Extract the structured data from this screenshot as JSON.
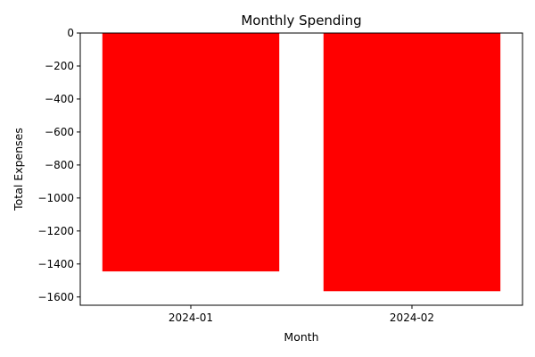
{
  "chart_data": {
    "type": "bar",
    "title": "Monthly Spending",
    "xlabel": "Month",
    "ylabel": "Total Expenses",
    "categories": [
      "2024-01",
      "2024-02"
    ],
    "values": [
      -1445,
      -1565
    ],
    "ylim": [
      -1650,
      0
    ],
    "yticks": [
      0,
      -200,
      -400,
      -600,
      -800,
      -1000,
      -1200,
      -1400,
      -1600
    ],
    "ytick_labels": [
      "0",
      "−200",
      "−400",
      "−600",
      "−800",
      "−1000",
      "−1200",
      "−1400",
      "−1600"
    ],
    "bar_color": "#ff0000",
    "grid": false,
    "legend": "none"
  }
}
